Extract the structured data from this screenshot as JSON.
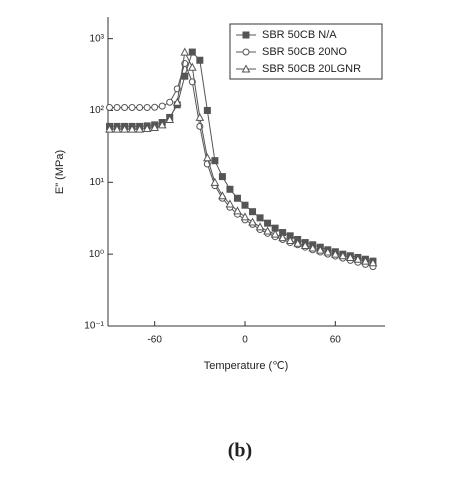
{
  "chart_data": {
    "type": "line",
    "log_y": true,
    "y_label": "E\" (MPa)",
    "x_label": "Temperature (℃)",
    "x": [
      -90,
      -85,
      -80,
      -75,
      -70,
      -65,
      -60,
      -55,
      -50,
      -45,
      -40,
      -35,
      -30,
      -25,
      -20,
      -15,
      -10,
      -5,
      0,
      5,
      10,
      15,
      20,
      25,
      30,
      35,
      40,
      45,
      50,
      55,
      60,
      65,
      70,
      75,
      80,
      85
    ],
    "series": [
      {
        "name": "SBR 50CB N/A",
        "color": "#555555",
        "marker": "square",
        "values": [
          60,
          60,
          60,
          60,
          60,
          61,
          63,
          68,
          80,
          120,
          300,
          650,
          500,
          100,
          20,
          12,
          8,
          6,
          4.8,
          3.9,
          3.2,
          2.7,
          2.3,
          2.0,
          1.8,
          1.6,
          1.45,
          1.35,
          1.25,
          1.15,
          1.08,
          1.0,
          0.95,
          0.9,
          0.85,
          0.8
        ]
      },
      {
        "name": "SBR 50CB 20NO",
        "color": "#555555",
        "marker": "circle",
        "values": [
          110,
          110,
          110,
          110,
          110,
          110,
          111,
          115,
          130,
          200,
          450,
          250,
          60,
          18,
          9,
          6,
          4.5,
          3.6,
          3.0,
          2.6,
          2.2,
          1.95,
          1.75,
          1.6,
          1.45,
          1.35,
          1.25,
          1.15,
          1.07,
          1.0,
          0.94,
          0.88,
          0.82,
          0.77,
          0.72,
          0.67
        ]
      },
      {
        "name": "SBR 50CB 20LGNR",
        "color": "#555555",
        "marker": "triangle",
        "values": [
          55,
          55,
          55,
          55,
          55,
          56,
          58,
          63,
          75,
          130,
          650,
          400,
          80,
          22,
          10,
          6.5,
          5,
          4,
          3.3,
          2.8,
          2.4,
          2.1,
          1.9,
          1.7,
          1.55,
          1.42,
          1.32,
          1.22,
          1.14,
          1.07,
          1.0,
          0.95,
          0.9,
          0.85,
          0.8,
          0.76
        ]
      }
    ],
    "xlim": [
      -91,
      93
    ],
    "xticks": [
      -60,
      0,
      60
    ],
    "ylim": [
      0.1,
      2000
    ],
    "yticks": [
      {
        "value": 0.1,
        "label": "10⁻¹"
      },
      {
        "value": 1,
        "label": "10⁰"
      },
      {
        "value": 10,
        "label": "10¹"
      },
      {
        "value": 100,
        "label": "10²"
      },
      {
        "value": 1000,
        "label": "10³"
      }
    ],
    "legend": "upper right"
  },
  "caption": "(b)"
}
